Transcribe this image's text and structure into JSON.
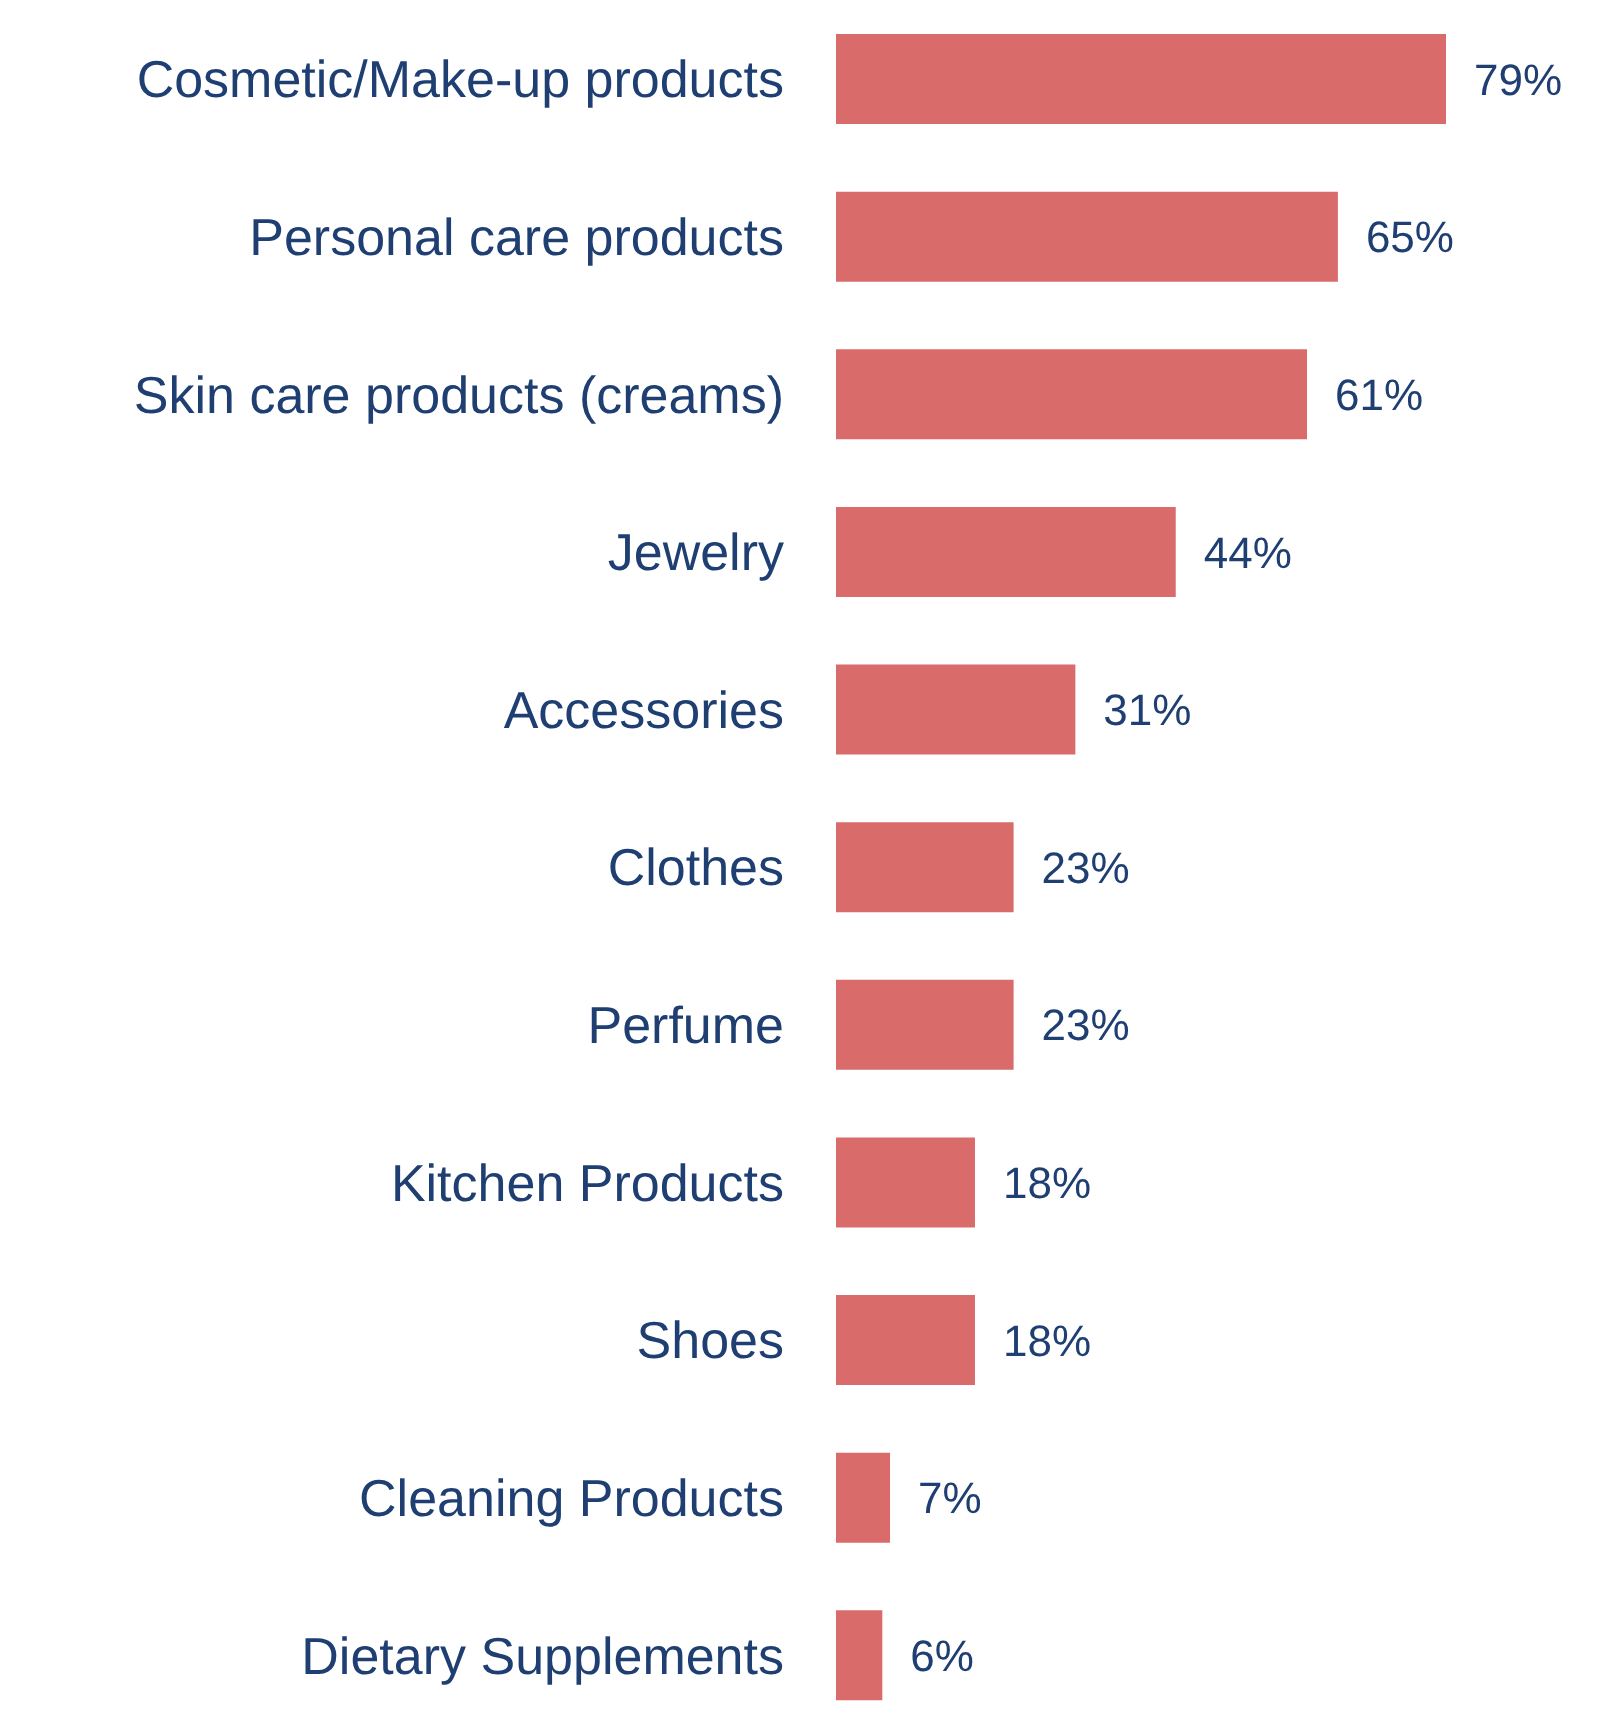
{
  "chart_data": {
    "type": "bar",
    "orientation": "horizontal",
    "tick_labels": "y",
    "categories": [
      "Cosmetic/Make-up products",
      "Personal care products",
      "Skin care products (creams)",
      "Jewelry",
      "Accessories",
      "Clothes",
      "Perfume",
      "Kitchen Products",
      "Shoes",
      "Cleaning Products",
      "Dietary Supplements"
    ],
    "values": [
      79,
      65,
      61,
      44,
      31,
      23,
      23,
      18,
      18,
      7,
      6
    ],
    "value_labels": [
      "79%",
      "65%",
      "61%",
      "44%",
      "31%",
      "23%",
      "23%",
      "18%",
      "18%",
      "7%",
      "6%"
    ],
    "color": "#d96b6b"
  }
}
